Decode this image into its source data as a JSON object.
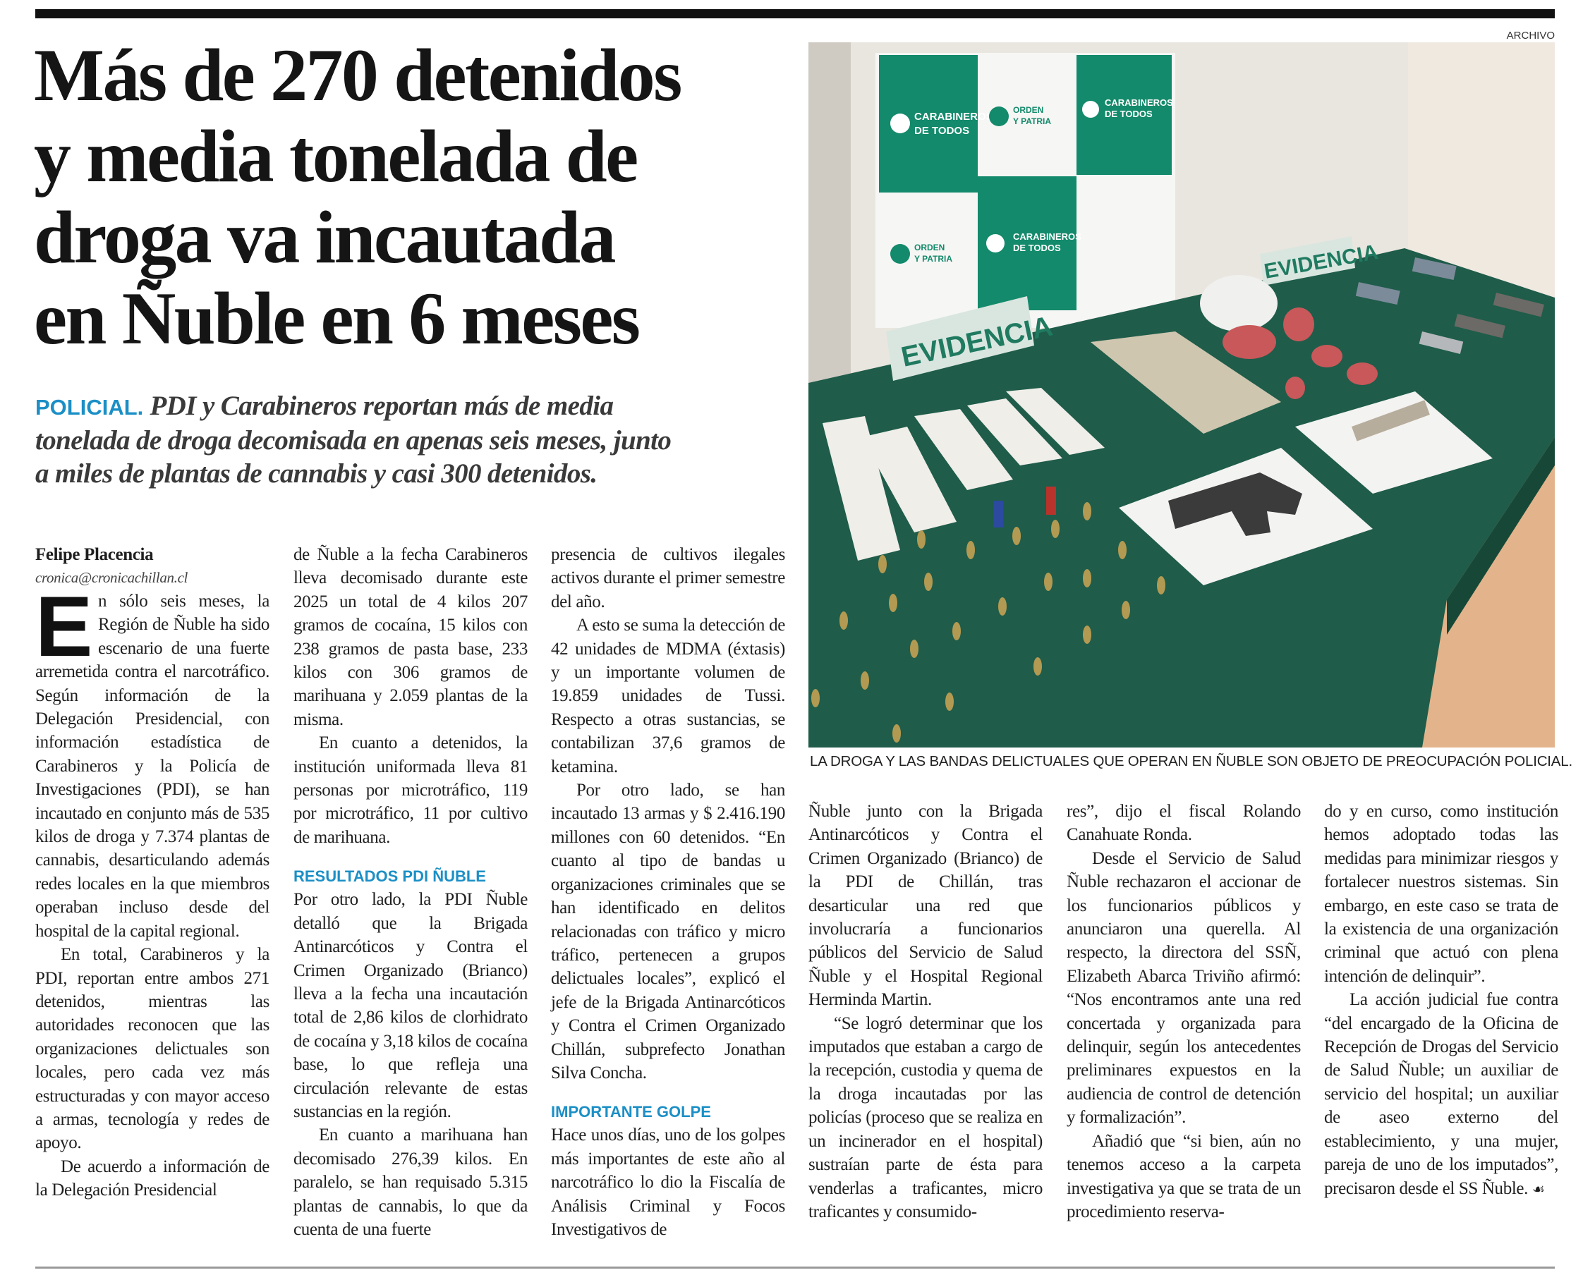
{
  "article": {
    "headline_lines": [
      "Más de 270 detenidos",
      "y media tonelada de",
      "droga va incautada",
      "en Ñuble en 6 meses"
    ],
    "kicker": "POLICIAL.",
    "lead_lines": [
      "PDI y Carabineros reportan más de media",
      "tonelada de droga decomisada en apenas seis meses, junto",
      "a miles de plantas de cannabis y casi 300 detenidos."
    ],
    "author": "Felipe Placencia",
    "author_email": "cronica@cronicachillan.cl",
    "photo_credit": "ARCHIVO",
    "photo_caption": "LA DROGA Y LAS BANDAS DELICTUALES QUE OPERAN EN ÑUBLE SON OBJETO DE PREOCUPACIÓN POLICIAL.",
    "photo_banner_texts": [
      "CARABINEROS DE TODOS",
      "ORDEN Y PATRIA",
      "EVIDENCIA"
    ],
    "drop_cap": "E",
    "end_mark": "☙",
    "subheads": [
      "RESULTADOS PDI ÑUBLE",
      "IMPORTANTE GOLPE"
    ],
    "columns": [
      {
        "paragraphs": [
          "n sólo seis meses, la Región de Ñuble ha sido escenario de una fuerte arremetida contra el narcotráfico. Según información de la Delegación Presidencial, con información estadística de Carabineros y la Policía de Investigaciones (PDI), se han incautado en conjunto más de 535 kilos de droga y 7.374 plantas de cannabis, desarticulando además redes locales en la que miembros operaban incluso desde del hospital de la capital regional.",
          "En total, Carabineros y la PDI, reportan entre ambos 271 detenidos, mientras las autoridades reconocen que las organizaciones delictuales son locales, pero cada vez más estructuradas y con mayor acceso a armas, tecnología y redes de apoyo.",
          "De acuerdo a información de la Delegación Presidencial"
        ]
      },
      {
        "paragraphs": [
          "de Ñuble a la fecha Carabineros lleva decomisado durante este 2025 un total de 4 kilos 207 gramos de cocaína, 15 kilos con 238 gramos de pasta base, 233 kilos con 306 gramos de marihuana y 2.059 plantas de la misma.",
          "En cuanto a detenidos, la institución uniformada lleva 81 personas por microtráfico, 119 por microtráfico, 11 por cultivo de marihuana.",
          "Por otro lado, la PDI Ñuble detalló que la Brigada Antinarcóticos y Contra el Crimen Organizado (Brianco) lleva a la fecha una incautación total de 2,86 kilos de clorhidrato de cocaína y 3,18 kilos de cocaína base, lo que refleja una circulación relevante de estas sustancias en la región.",
          "En cuanto a marihuana han decomisado 276,39 kilos. En paralelo, se han requisado 5.315 plantas de cannabis, lo que da cuenta de una fuerte"
        ]
      },
      {
        "paragraphs": [
          "presencia de cultivos ilegales activos durante el primer semestre del año.",
          "A esto se suma la detección de 42 unidades de MDMA (éxtasis) y un importante volumen de 19.859 unidades de Tussi. Respecto a otras sustancias, se contabilizan 37,6 gramos de ketamina.",
          "Por otro lado, se han incautado 13 armas y $ 2.416.190 millones con 60 detenidos. “En cuanto al tipo de bandas u organizaciones criminales que se han identificado en delitos relacionadas con tráfico y micro tráfico, pertenecen a grupos delictuales locales”, explicó el jefe de la Brigada Antinarcóticos y Contra el Crimen Organizado Chillán, subprefecto Jonathan Silva Concha.",
          "Hace unos días, uno de los golpes más importantes de este año al narcotráfico lo dio la Fiscalía de Análisis Criminal y Focos Investigativos de"
        ]
      },
      {
        "paragraphs": [
          "Ñuble junto con la Brigada Antinarcóticos y Contra el Crimen Organizado (Brianco) de la PDI de Chillán, tras desarticular una red que involucraría a funcionarios públicos del Servicio de Salud Ñuble y el Hospital Regional Herminda Martin.",
          "“Se logró determinar que los imputados que estaban a cargo de la recepción, custodia y quema de la droga incautadas por las policías (proceso que se realiza en un incinerador en el hospital) sustraían parte de ésta para venderlas a traficantes, micro traficantes y consumido-"
        ]
      },
      {
        "paragraphs": [
          "res”, dijo el fiscal Rolando Canahuate Ronda.",
          "Desde el Servicio de Salud Ñuble rechazaron el accionar de los funcionarios públicos y anunciaron una querella. Al respecto, la directora del SSÑ, Elizabeth Abarca Triviño afirmó: “Nos encontramos ante una red concertada y organizada para delinquir, según los antecedentes preliminares expuestos en la audiencia de control de detención y formalización”.",
          "Añadió que “si bien, aún no tenemos acceso a la carpeta investigativa ya que se trata de un procedimiento reserva-"
        ]
      },
      {
        "paragraphs": [
          "do y en curso, como institución hemos adoptado todas las medidas para minimizar riesgos y fortalecer nuestros sistemas. Sin embargo, en este caso se trata de la existencia de una organización criminal que actuó con plena intención de delinquir”.",
          "La acción judicial fue contra “del encargado de la Oficina de Recepción de Drogas del Servicio de Salud Ñuble; un auxiliar de servicio del hospital; un auxiliar de aseo externo del establecimiento, y una mujer, pareja de uno de los imputados”, precisaron desde el SS Ñuble."
        ]
      }
    ]
  },
  "colors": {
    "accent_blue": "#1b8fc6",
    "table_green": "#1f5c4a",
    "banner_green": "#138a6b"
  }
}
